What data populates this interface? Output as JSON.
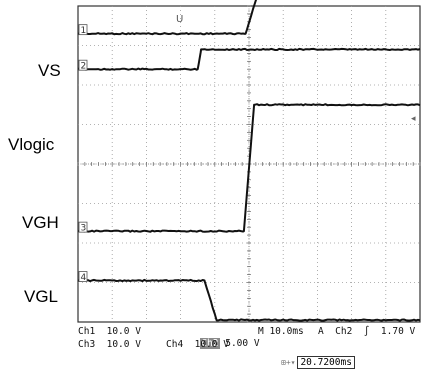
{
  "chart_data": {
    "type": "line",
    "title": "",
    "xlabel": "",
    "ylabel": "",
    "grid": true,
    "divisions": {
      "x": 10,
      "y": 8
    },
    "series": [
      {
        "name": "VS",
        "channel": "1",
        "label_text": "VS",
        "marker": "1",
        "low_level_div": 7.3,
        "high_level_div": 8.7,
        "transition_start_div": 4.9,
        "transition_end_div": 5.4,
        "direction": "rising"
      },
      {
        "name": "Vlogic",
        "channel": "2",
        "label_text": "Vlogic",
        "marker": "2",
        "low_level_div": 6.4,
        "high_level_div": 6.9,
        "transition_start_div": 3.5,
        "transition_end_div": 3.6,
        "direction": "rising"
      },
      {
        "name": "VGH",
        "channel": "3",
        "label_text": "VGH",
        "marker": "3",
        "low_level_div": 2.3,
        "high_level_div": 5.5,
        "transition_start_div": 4.85,
        "transition_end_div": 5.15,
        "direction": "rising"
      },
      {
        "name": "VGL",
        "channel": "4",
        "label_text": "VGL",
        "marker": "4",
        "low_level_div": 0.05,
        "high_level_div": 1.05,
        "transition_start_div": 3.7,
        "transition_end_div": 4.05,
        "direction": "falling"
      }
    ],
    "trigger_position_marker": "U",
    "right_edge_marker": "◂",
    "status": {
      "row1": [
        {
          "key": "ch1",
          "text": "Ch1  10.0 V",
          "highlight": false
        },
        {
          "key": "ch2",
          "label": "Ch2",
          "value": " 5.00 V",
          "highlight": true
        },
        {
          "key": "timebase",
          "text": "M 10.0ms",
          "highlight": false
        },
        {
          "key": "trigger",
          "text": "A  Ch2  ∫  1.70 V",
          "highlight": false
        }
      ],
      "row2": [
        {
          "key": "ch3",
          "text": "Ch3  10.0 V",
          "highlight": false
        },
        {
          "key": "ch4",
          "text": "Ch4  10.0 V",
          "highlight": false
        }
      ],
      "trigger_time": "20.7200ms",
      "trigger_icon": "⊞+▾"
    }
  }
}
